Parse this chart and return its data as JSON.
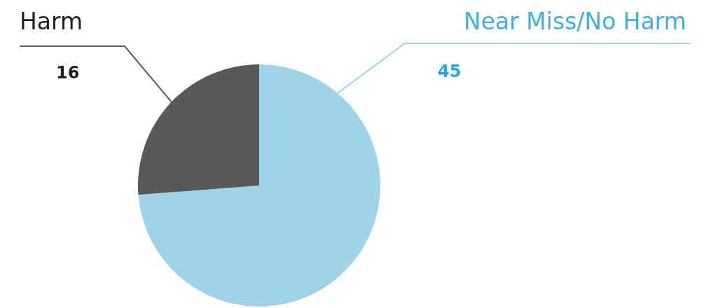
{
  "chart_data": {
    "type": "pie",
    "categories": [
      "Near Miss/No Harm",
      "Harm"
    ],
    "values": [
      45,
      16
    ],
    "colors": [
      "#a0d3e8",
      "#595959"
    ],
    "data_labels": true
  }
}
